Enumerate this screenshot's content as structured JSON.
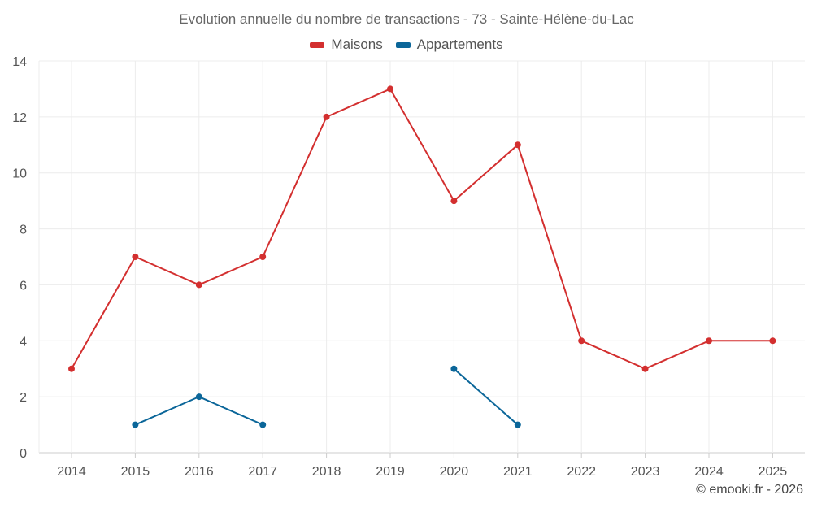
{
  "chart_data": {
    "type": "line",
    "title": "Evolution annuelle du nombre de transactions - 73 - Sainte-Hélène-du-Lac",
    "x": [
      "2014",
      "2015",
      "2016",
      "2017",
      "2018",
      "2019",
      "2020",
      "2021",
      "2022",
      "2023",
      "2024",
      "2025"
    ],
    "ylim": [
      0,
      14
    ],
    "yticks": [
      "0",
      "2",
      "4",
      "6",
      "8",
      "10",
      "12",
      "14"
    ],
    "grid": true,
    "legend_position": "top-center",
    "series": [
      {
        "name": "Maisons",
        "color": "#d32f2f",
        "values": [
          3,
          7,
          6,
          7,
          12,
          13,
          9,
          11,
          4,
          3,
          4,
          4
        ]
      },
      {
        "name": "Appartements",
        "color": "#0b6699",
        "values": [
          null,
          1,
          2,
          1,
          null,
          null,
          3,
          1,
          null,
          null,
          null,
          null
        ]
      }
    ]
  },
  "credit": "© emooki.fr - 2026"
}
